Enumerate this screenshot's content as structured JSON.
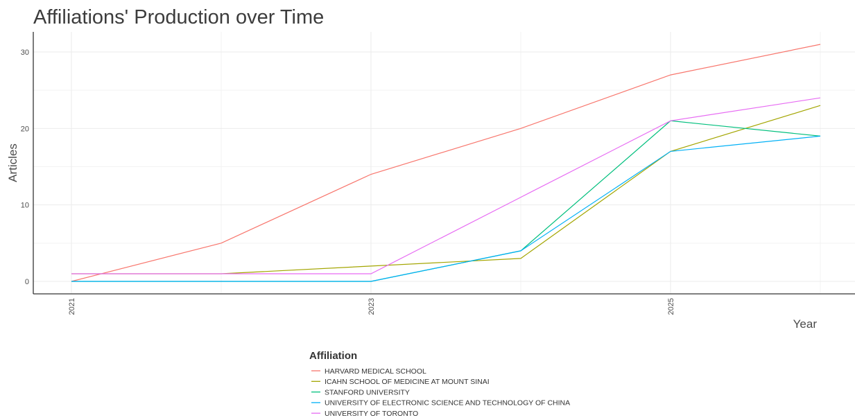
{
  "chart_data": {
    "type": "line",
    "title": "Affiliations' Production over Time",
    "xlabel": "Year",
    "ylabel": "Articles",
    "x": [
      2021,
      2022,
      2023,
      2024,
      2025,
      2026
    ],
    "x_ticks": [
      "2021",
      "2023",
      "2025"
    ],
    "y_ticks": [
      "0",
      "10",
      "20",
      "30"
    ],
    "xlim": [
      2021,
      2026
    ],
    "ylim": [
      0,
      31
    ],
    "grid": true,
    "legend_title": "Affiliation",
    "legend_position": "bottom",
    "series": [
      {
        "name": "HARVARD MEDICAL SCHOOL",
        "color": "#F8766D",
        "values": [
          0,
          5,
          14,
          20,
          27,
          31
        ]
      },
      {
        "name": "ICAHN SCHOOL OF MEDICINE AT MOUNT SINAI",
        "color": "#A3A500",
        "values": [
          1,
          1,
          2,
          3,
          17,
          23
        ]
      },
      {
        "name": "STANFORD UNIVERSITY",
        "color": "#00BF7D",
        "values": [
          0,
          0,
          0,
          4,
          21,
          19
        ]
      },
      {
        "name": "UNIVERSITY OF ELECTRONIC SCIENCE AND TECHNOLOGY OF CHINA",
        "color": "#00B0F6",
        "values": [
          0,
          0,
          0,
          4,
          17,
          19
        ]
      },
      {
        "name": "UNIVERSITY OF TORONTO",
        "color": "#E76BF3",
        "values": [
          1,
          1,
          1,
          11,
          21,
          24
        ]
      }
    ]
  }
}
